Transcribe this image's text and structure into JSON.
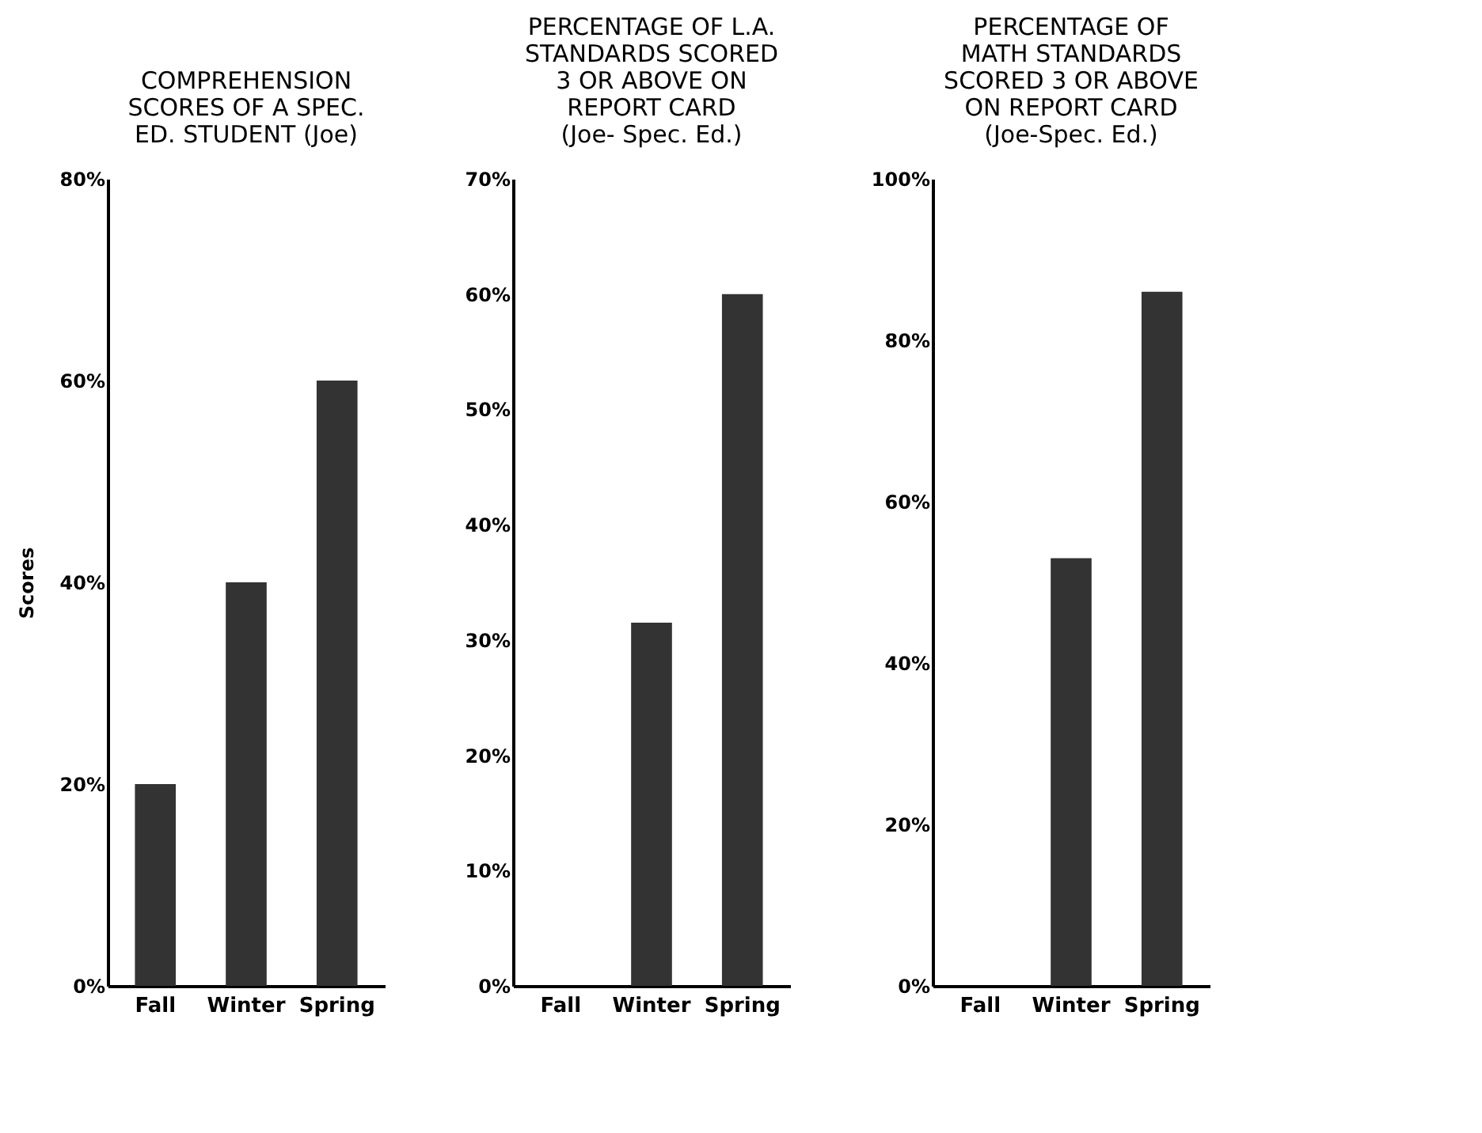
{
  "chart_data": [
    {
      "type": "bar",
      "title": "COMPREHENSION\nSCORES OF A SPEC.\nED. STUDENT (Joe)",
      "ylabel": "Scores",
      "categories": [
        "Fall",
        "Winter",
        "Spring"
      ],
      "values": [
        20,
        40,
        60
      ],
      "color": "#333333",
      "ylim": [
        0,
        80
      ],
      "yticks": [
        {
          "value": 0,
          "label": "0%"
        },
        {
          "value": 20,
          "label": "20%"
        },
        {
          "value": 40,
          "label": "40%"
        },
        {
          "value": 60,
          "label": "60%"
        },
        {
          "value": 80,
          "label": "80%"
        }
      ],
      "grid": false
    },
    {
      "type": "bar",
      "title": "PERCENTAGE OF L.A.\nSTANDARDS SCORED\n3 OR ABOVE ON\nREPORT CARD\n(Joe- Spec. Ed.)",
      "categories": [
        "Fall",
        "Winter",
        "Spring"
      ],
      "values": [
        0,
        31.5,
        60
      ],
      "color": "#333333",
      "ylim": [
        0,
        70
      ],
      "yticks": [
        {
          "value": 0,
          "label": "0%"
        },
        {
          "value": 10,
          "label": "10%"
        },
        {
          "value": 20,
          "label": "20%"
        },
        {
          "value": 30,
          "label": "30%"
        },
        {
          "value": 40,
          "label": "40%"
        },
        {
          "value": 50,
          "label": "50%"
        },
        {
          "value": 60,
          "label": "60%"
        },
        {
          "value": 70,
          "label": "70%"
        }
      ],
      "grid": false
    },
    {
      "type": "bar",
      "title": "PERCENTAGE OF\nMATH STANDARDS\nSCORED 3 OR ABOVE\nON REPORT CARD\n(Joe-Spec. Ed.)",
      "categories": [
        "Fall",
        "Winter",
        "Spring"
      ],
      "values": [
        0,
        53,
        86
      ],
      "color": "#333333",
      "ylim": [
        0,
        100
      ],
      "yticks": [
        {
          "value": 0,
          "label": "0%"
        },
        {
          "value": 20,
          "label": "20%"
        },
        {
          "value": 40,
          "label": "40%"
        },
        {
          "value": 60,
          "label": "60%"
        },
        {
          "value": 80,
          "label": "80%"
        },
        {
          "value": 100,
          "label": "100%"
        }
      ],
      "grid": false
    }
  ]
}
